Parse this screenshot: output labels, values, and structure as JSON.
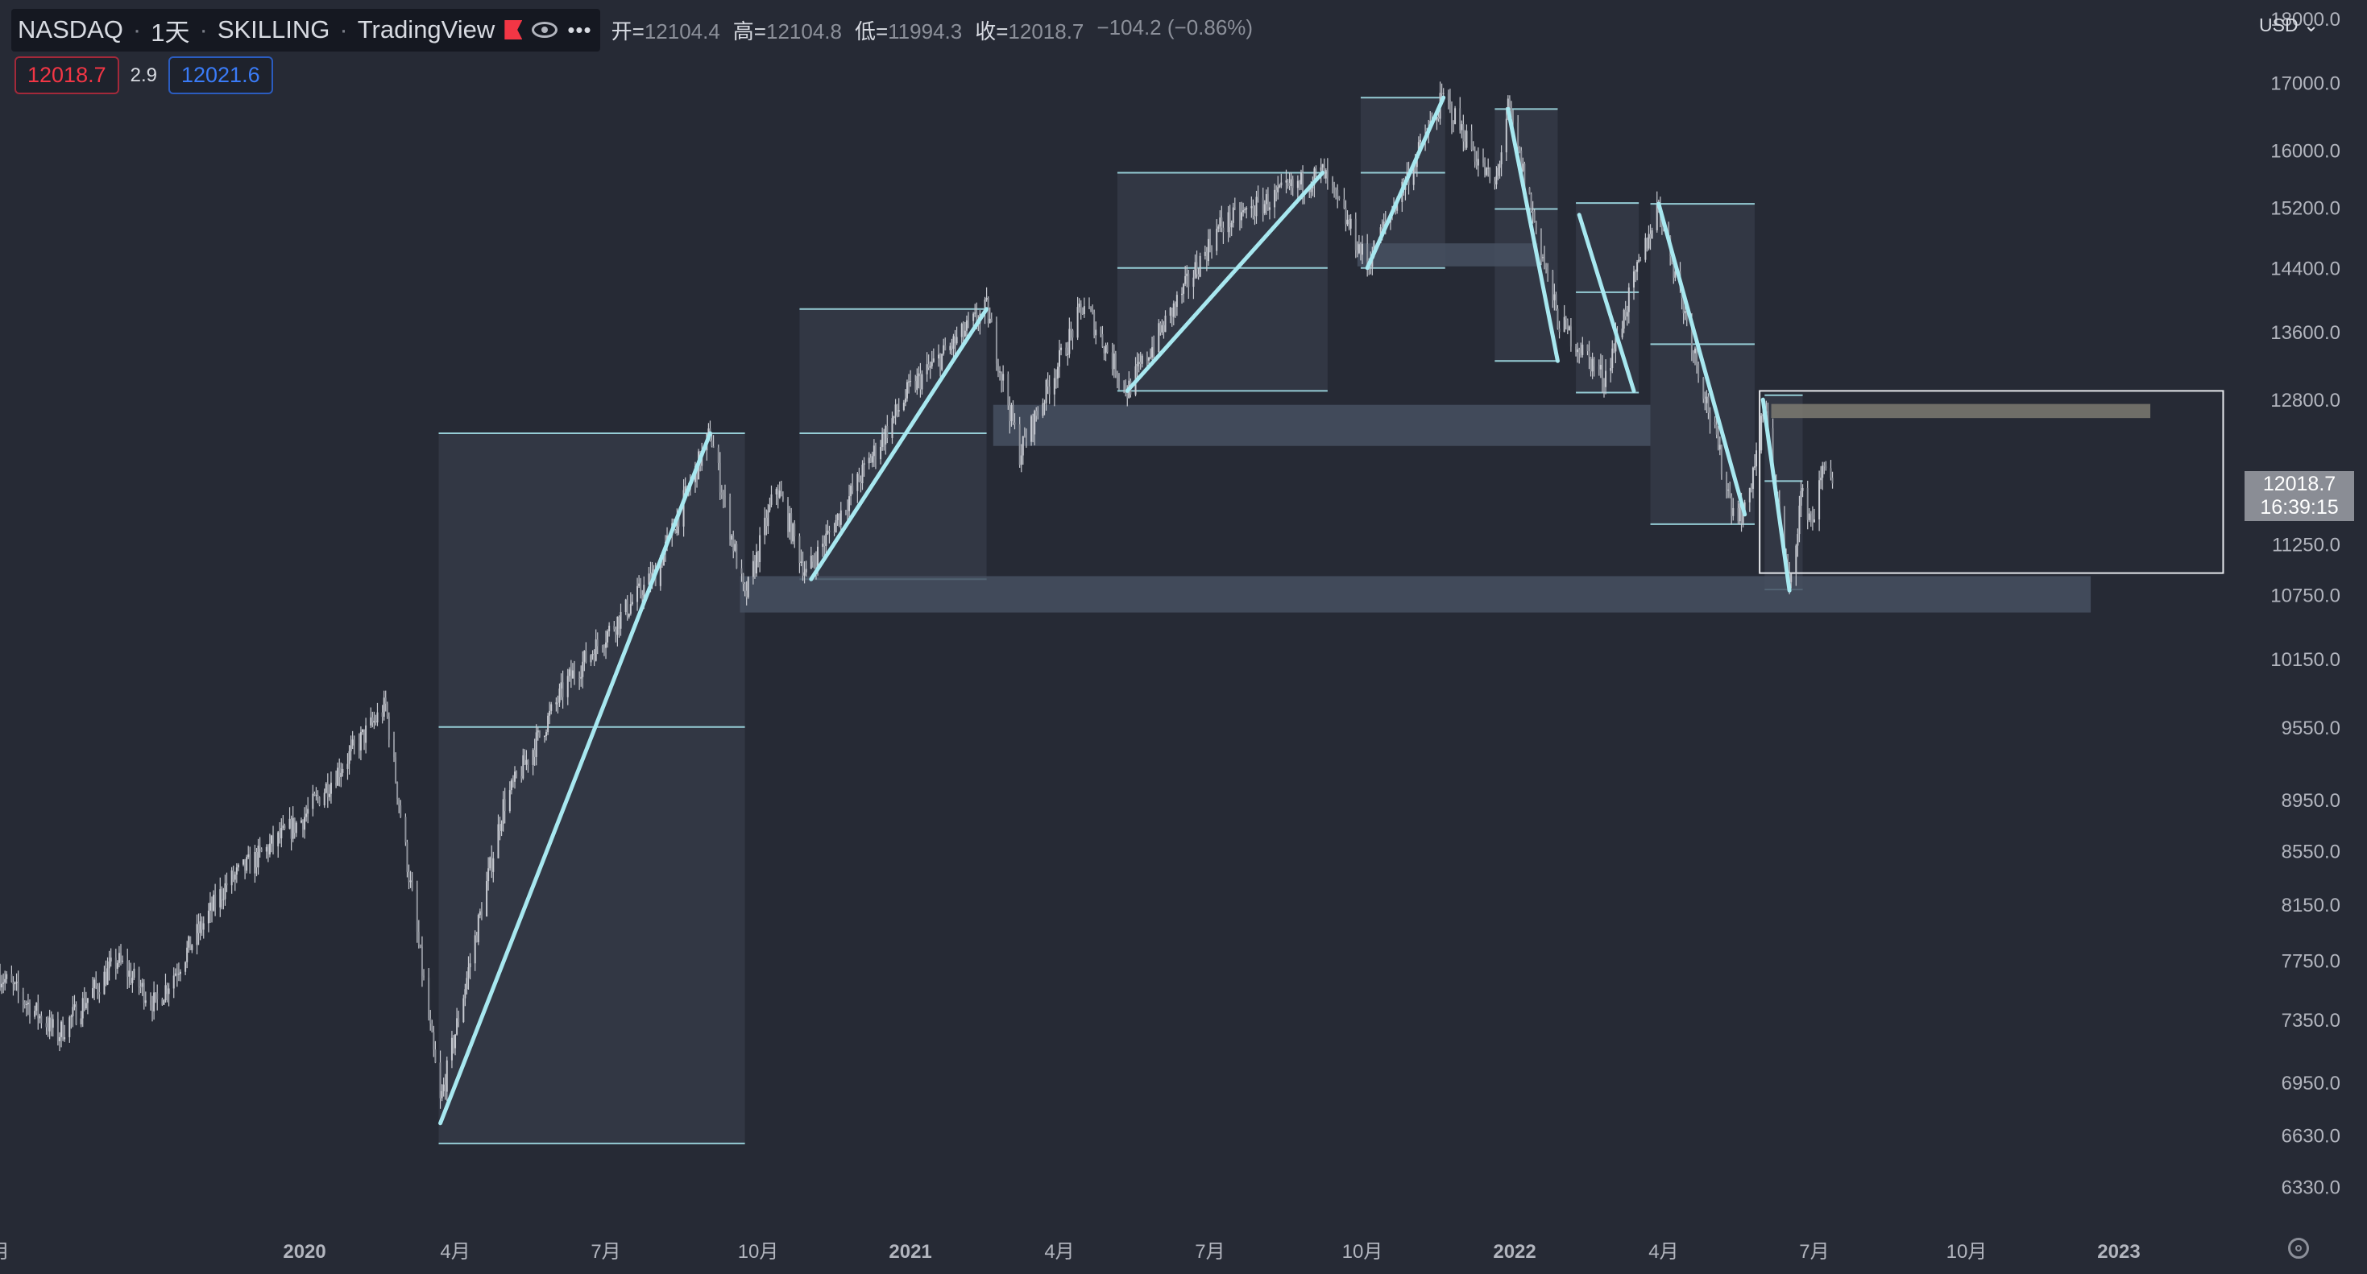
{
  "legend": {
    "symbol": "NASDAQ",
    "interval": "1天",
    "source": "SKILLING",
    "platform": "TradingView",
    "open_label": "开=",
    "open": "12104.4",
    "high_label": "高=",
    "high": "12104.8",
    "low_label": "低=",
    "low": "11994.3",
    "close_label": "收=",
    "close": "12018.7",
    "change": "−104.2 (−0.86%)"
  },
  "trade": {
    "sell": "12018.7",
    "spread": "2.9",
    "buy": "12021.6"
  },
  "currency": "USD",
  "last_price": {
    "value": "12018.7",
    "countdown": "16:39:15"
  },
  "colors": {
    "background": "#262a35",
    "candle": "#c7cad1",
    "trend_line": "#a8e8f0",
    "box_fill": "#323744",
    "zone_fill": "#475060",
    "zone_tan": "#7c7a71",
    "axis_text": "#b2b5be"
  },
  "chart_data": {
    "type": "candlestick",
    "title": "",
    "y_scale": "log",
    "y_range": [
      6100,
      18300
    ],
    "x_range": [
      "2019-07-01",
      "2023-03-15"
    ],
    "y_ticks": [
      "18000.0",
      "17000.0",
      "16000.0",
      "15200.0",
      "14400.0",
      "13600.0",
      "12800.0",
      "11250.0",
      "10750.0",
      "10150.0",
      "9550.0",
      "8950.0",
      "8550.0",
      "8150.0",
      "7750.0",
      "7350.0",
      "6950.0",
      "6630.0",
      "6330.0"
    ],
    "x_ticks": [
      {
        "label": "月",
        "date": "2019-07-01",
        "bold": false
      },
      {
        "label": "2020",
        "date": "2020-01-01",
        "bold": true
      },
      {
        "label": "4月",
        "date": "2020-04-01",
        "bold": false
      },
      {
        "label": "7月",
        "date": "2020-07-01",
        "bold": false
      },
      {
        "label": "10月",
        "date": "2020-10-01",
        "bold": false
      },
      {
        "label": "2021",
        "date": "2021-01-01",
        "bold": true
      },
      {
        "label": "4月",
        "date": "2021-04-01",
        "bold": false
      },
      {
        "label": "7月",
        "date": "2021-07-01",
        "bold": false
      },
      {
        "label": "10月",
        "date": "2021-10-01",
        "bold": false
      },
      {
        "label": "2022",
        "date": "2022-01-01",
        "bold": true
      },
      {
        "label": "4月",
        "date": "2022-04-01",
        "bold": false
      },
      {
        "label": "7月",
        "date": "2022-07-01",
        "bold": false
      },
      {
        "label": "10月",
        "date": "2022-10-01",
        "bold": false
      },
      {
        "label": "2023",
        "date": "2023-01-01",
        "bold": true
      }
    ],
    "price_path": [
      [
        "2019-07-01",
        7650
      ],
      [
        "2019-08-05",
        7250
      ],
      [
        "2019-09-10",
        7750
      ],
      [
        "2019-10-03",
        7450
      ],
      [
        "2019-11-15",
        8300
      ],
      [
        "2019-12-31",
        8800
      ],
      [
        "2020-02-19",
        9730
      ],
      [
        "2020-03-23",
        6820
      ],
      [
        "2020-04-30",
        8900
      ],
      [
        "2020-06-08",
        9950
      ],
      [
        "2020-07-31",
        10950
      ],
      [
        "2020-09-02",
        12420
      ],
      [
        "2020-09-23",
        10700
      ],
      [
        "2020-10-12",
        11850
      ],
      [
        "2020-10-30",
        10950
      ],
      [
        "2020-12-31",
        12900
      ],
      [
        "2021-02-16",
        13880
      ],
      [
        "2021-03-08",
        12200
      ],
      [
        "2021-04-16",
        13950
      ],
      [
        "2021-05-12",
        12900
      ],
      [
        "2021-07-07",
        14950
      ],
      [
        "2021-09-07",
        15680
      ],
      [
        "2021-10-04",
        14450
      ],
      [
        "2021-11-19",
        16770
      ],
      [
        "2021-12-20",
        15450
      ],
      [
        "2021-12-28",
        16600
      ],
      [
        "2022-01-27",
        13750
      ],
      [
        "2022-02-24",
        13050
      ],
      [
        "2022-03-29",
        15250
      ],
      [
        "2022-05-12",
        11650
      ],
      [
        "2022-05-20",
        11550
      ],
      [
        "2022-06-01",
        12700
      ],
      [
        "2022-06-16",
        10790
      ],
      [
        "2022-06-23",
        11750
      ],
      [
        "2022-06-30",
        11500
      ],
      [
        "2022-07-08",
        12150
      ],
      [
        "2022-07-12",
        11900
      ]
    ],
    "trend_lines": [
      {
        "from": [
          "2020-03-23",
          6700
        ],
        "to": [
          "2020-09-02",
          12420
        ]
      },
      {
        "from": [
          "2020-11-02",
          10900
        ],
        "to": [
          "2021-02-16",
          13880
        ]
      },
      {
        "from": [
          "2021-05-12",
          12900
        ],
        "to": [
          "2021-09-07",
          15680
        ]
      },
      {
        "from": [
          "2021-10-04",
          14400
        ],
        "to": [
          "2021-11-19",
          16770
        ]
      },
      {
        "from": [
          "2021-12-28",
          16600
        ],
        "to": [
          "2022-01-27",
          13250
        ]
      },
      {
        "from": [
          "2022-02-09",
          15100
        ],
        "to": [
          "2022-03-14",
          12900
        ]
      },
      {
        "from": [
          "2022-03-29",
          15250
        ],
        "to": [
          "2022-05-20",
          11550
        ]
      },
      {
        "from": [
          "2022-05-31",
          12800
        ],
        "to": [
          "2022-06-16",
          10790
        ]
      }
    ],
    "range_boxes": [
      {
        "from": "2020-03-22",
        "to": "2020-09-23",
        "top": 12420,
        "mid": 9550,
        "bottom": 6580
      },
      {
        "from": "2020-10-26",
        "to": "2021-02-16",
        "top": 13880,
        "mid": 12420,
        "bottom": 10900
      },
      {
        "from": "2021-05-06",
        "to": "2021-09-10",
        "top": 15680,
        "mid": 14400,
        "bottom": 12900
      },
      {
        "from": "2021-09-30",
        "to": "2021-11-20",
        "top": 16770,
        "mid": 15680,
        "bottom": 14400
      },
      {
        "from": "2021-12-20",
        "to": "2022-01-27",
        "top": 16600,
        "mid": 15180,
        "bottom": 13250
      },
      {
        "from": "2022-02-07",
        "to": "2022-03-17",
        "top": 15260,
        "mid": 14090,
        "bottom": 12880
      },
      {
        "from": "2022-03-24",
        "to": "2022-05-26",
        "top": 15250,
        "mid": 13450,
        "bottom": 11450
      },
      {
        "from": "2022-06-01",
        "to": "2022-06-24",
        "top": 12850,
        "mid": 11900,
        "bottom": 10800
      }
    ],
    "zones": [
      {
        "from": "2021-02-20",
        "to": "2022-03-24",
        "top": 12740,
        "bottom": 12280,
        "color": "zone"
      },
      {
        "from": "2020-09-20",
        "to": "2022-12-15",
        "top": 10930,
        "bottom": 10580,
        "color": "zone"
      },
      {
        "from": "2021-09-28",
        "to": "2022-01-15",
        "top": 14720,
        "bottom": 14420,
        "color": "zone"
      },
      {
        "from": "2022-06-05",
        "to": "2023-01-20",
        "top": 12750,
        "bottom": 12590,
        "color": "tan"
      }
    ],
    "open_rectangle": {
      "from": "2022-05-29",
      "to": "2023-03-05",
      "top": 12900,
      "bottom": 10960
    },
    "last_close": 12018.7
  }
}
